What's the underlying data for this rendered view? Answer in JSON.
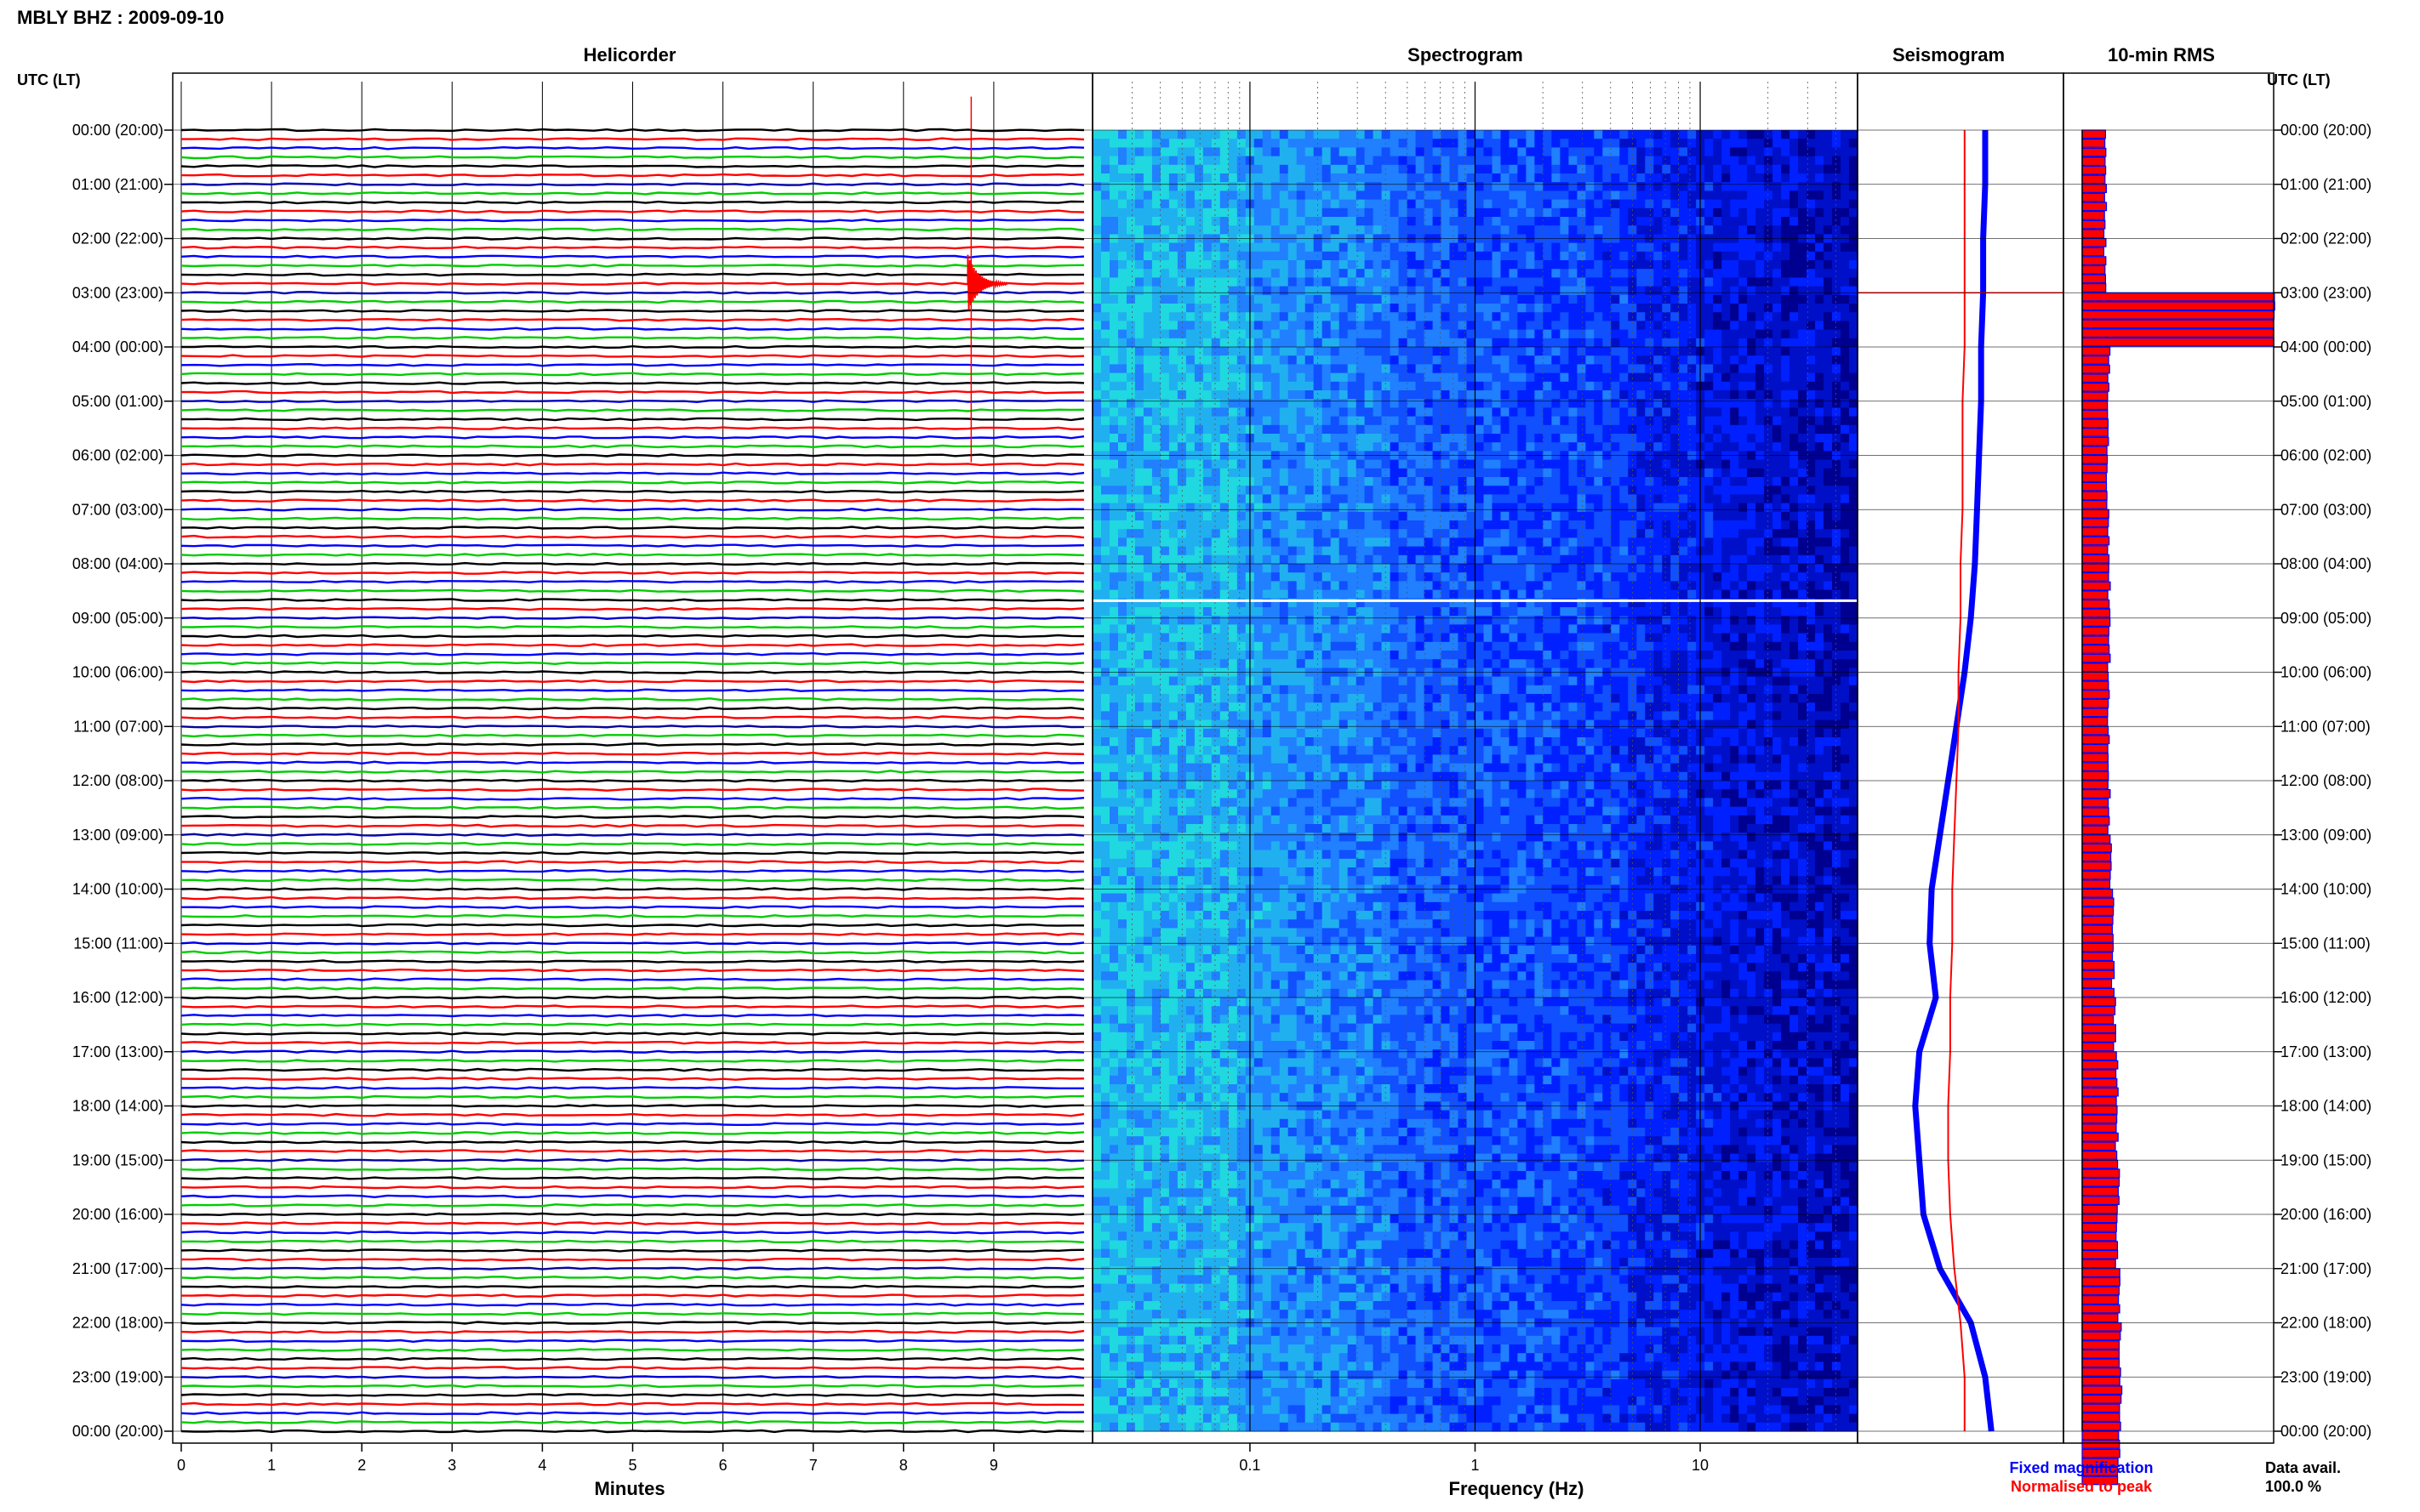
{
  "header": {
    "station_title": "MBLY BHZ : 2009-09-10"
  },
  "panels": {
    "helicorder_title": "Helicorder",
    "spectrogram_title": "Spectrogram",
    "seismogram_title": "Seismogram",
    "rms_title": "10-min RMS",
    "left_axis_title": "UTC (LT)",
    "right_axis_title": "UTC (LT)",
    "x_minutes_title": "Minutes",
    "x_frequency_title": "Frequency (Hz)"
  },
  "legend": {
    "fixed_label": "Fixed magnification",
    "normalised_label": "Normalised to peak",
    "fixed_color": "#0000ff",
    "normalised_color": "#ff0000",
    "availability_label": "Data avail.",
    "availability_value": "100.0 %"
  },
  "chart_data": [
    {
      "type": "line",
      "name": "helicorder",
      "title": "Helicorder",
      "xlabel": "Minutes",
      "ylabel": "UTC (LT)",
      "x_ticks": [
        "0",
        "1",
        "2",
        "3",
        "4",
        "5",
        "6",
        "7",
        "8",
        "9"
      ],
      "xlim": [
        0,
        10
      ],
      "y_tick_labels": [
        "00:00 (20:00)",
        "01:00 (21:00)",
        "02:00 (22:00)",
        "03:00 (23:00)",
        "04:00 (00:00)",
        "05:00 (01:00)",
        "06:00 (02:00)",
        "07:00 (03:00)",
        "08:00 (04:00)",
        "09:00 (05:00)",
        "10:00 (06:00)",
        "11:00 (07:00)",
        "12:00 (08:00)",
        "13:00 (09:00)",
        "14:00 (10:00)",
        "15:00 (11:00)",
        "16:00 (12:00)",
        "17:00 (13:00)",
        "18:00 (14:00)",
        "19:00 (15:00)",
        "20:00 (16:00)",
        "21:00 (17:00)",
        "22:00 (18:00)",
        "23:00 (19:00)",
        "00:00 (20:00)"
      ],
      "line_colors": [
        "#000000",
        "#ff0000",
        "#0000ff",
        "#00cc00"
      ],
      "traces_per_hour": 6,
      "event": {
        "hour": 2.0,
        "trace_in_hour": 5,
        "minute": 8.75
      }
    },
    {
      "type": "heatmap",
      "name": "spectrogram",
      "title": "Spectrogram",
      "xlabel": "Frequency (Hz)",
      "x_scale": "log",
      "xlim": [
        0.02,
        50
      ],
      "x_tick_labels": [
        "0.1",
        "1",
        "10"
      ],
      "y_tick_labels_shared_with": "helicorder",
      "color_range": [
        "#000080",
        "#0000ff",
        "#1e90ff",
        "#00e0e0",
        "#7fff7f"
      ]
    },
    {
      "type": "line",
      "name": "seismogram",
      "title": "Seismogram",
      "series": [
        {
          "name": "Fixed magnification",
          "color": "#0000ff",
          "x": [
            0.62,
            0.62,
            0.61,
            0.61,
            0.6,
            0.6,
            0.59,
            0.58,
            0.57,
            0.55,
            0.52,
            0.48,
            0.44,
            0.4,
            0.36,
            0.35,
            0.38,
            0.3,
            0.28,
            0.3,
            0.32,
            0.4,
            0.55,
            0.62,
            0.65
          ],
          "y": [
            0,
            1,
            2,
            3,
            4,
            5,
            6,
            7,
            8,
            9,
            10,
            11,
            12,
            13,
            14,
            15,
            16,
            17,
            18,
            19,
            20,
            21,
            22,
            23,
            24
          ]
        },
        {
          "name": "Normalised to peak",
          "color": "#ff0000",
          "x": [
            0.52,
            0.52,
            0.52,
            0.52,
            0.52,
            0.51,
            0.51,
            0.51,
            0.5,
            0.5,
            0.49,
            0.49,
            0.48,
            0.47,
            0.46,
            0.46,
            0.45,
            0.45,
            0.44,
            0.44,
            0.45,
            0.47,
            0.5,
            0.52,
            0.52
          ],
          "y": [
            0,
            1,
            2,
            3,
            4,
            5,
            6,
            7,
            8,
            9,
            10,
            11,
            12,
            13,
            14,
            15,
            16,
            17,
            18,
            19,
            20,
            21,
            22,
            23,
            24
          ]
        }
      ]
    },
    {
      "type": "bar",
      "name": "rms",
      "title": "10-min RMS",
      "orientation": "horizontal",
      "series": [
        {
          "name": "Fixed magnification",
          "color": "#0000ff"
        },
        {
          "name": "Normalised to peak",
          "color": "#ff0000"
        }
      ],
      "values_relative": [
        0.12,
        0.12,
        0.12,
        1.0,
        0.14,
        0.13,
        0.13,
        0.14,
        0.14,
        0.14,
        0.14,
        0.14,
        0.14,
        0.15,
        0.16,
        0.16,
        0.17,
        0.18,
        0.18,
        0.19,
        0.18,
        0.19,
        0.2,
        0.2,
        0.19
      ]
    }
  ]
}
